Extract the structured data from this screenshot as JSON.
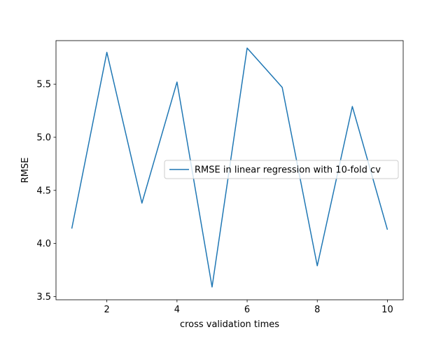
{
  "chart_data": {
    "type": "line",
    "title": "",
    "xlabel": "cross validation times",
    "ylabel": "RMSE",
    "xlim": [
      0.55,
      10.45
    ],
    "ylim": [
      3.47,
      5.91
    ],
    "xticks": [
      2,
      4,
      6,
      8,
      10
    ],
    "yticks": [
      3.5,
      4.0,
      4.5,
      5.0,
      5.5
    ],
    "ytick_labels": [
      "3.5",
      "4.0",
      "4.5",
      "5.0",
      "5.5"
    ],
    "grid": false,
    "legend_position": "center-right",
    "series": [
      {
        "name": "RMSE in linear regression with 10-fold cv",
        "color": "#1f77b4",
        "x": [
          1,
          2,
          3,
          4,
          5,
          6,
          7,
          8,
          9,
          10
        ],
        "y": [
          4.14,
          5.8,
          4.38,
          5.52,
          3.59,
          5.84,
          5.47,
          3.79,
          5.29,
          4.13
        ]
      }
    ]
  }
}
